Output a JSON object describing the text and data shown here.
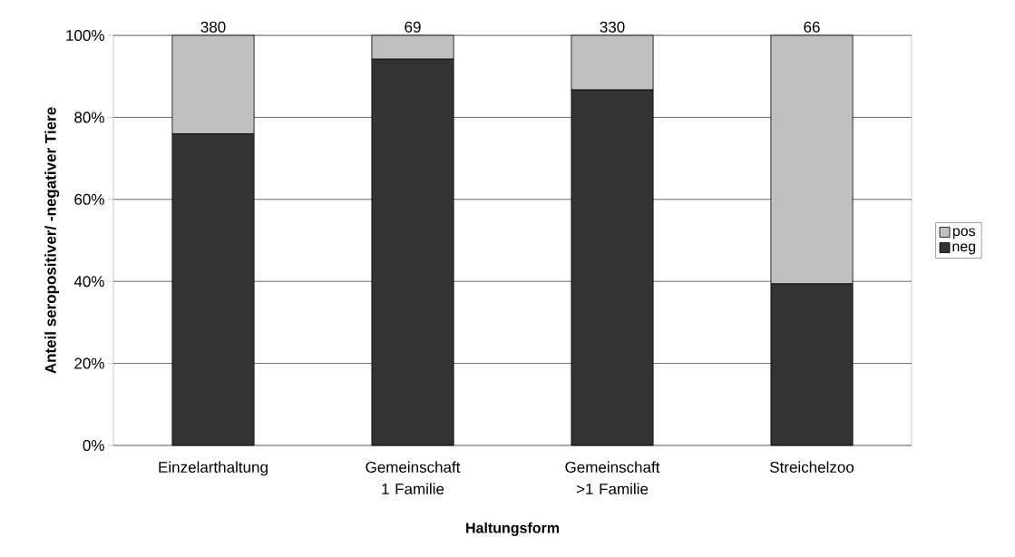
{
  "chart_data": {
    "type": "bar",
    "stacked": true,
    "xlabel": "Haltungsform",
    "ylabel": "Anteil seropositiver/ -negativer Tiere",
    "categories": [
      "Einzelarthaltung",
      "Gemeinschaft 1 Familie",
      "Gemeinschaft >1 Familie",
      "Streichelzoo"
    ],
    "series": [
      {
        "name": "neg",
        "color": "#333333",
        "values": [
          76,
          94.2,
          86.7,
          39.4
        ]
      },
      {
        "name": "pos",
        "color": "#c0c0c0",
        "values": [
          24,
          5.8,
          13.3,
          60.6
        ]
      }
    ],
    "annotations": [
      {
        "text": "380",
        "x": "Einzelarthaltung",
        "y": 100
      },
      {
        "text": "69",
        "x": "Gemeinschaft 1 Familie",
        "y": 100
      },
      {
        "text": "330",
        "x": "Gemeinschaft >1 Familie",
        "y": 100
      },
      {
        "text": "66",
        "x": "Streichelzoo",
        "y": 100
      }
    ],
    "ylim": [
      0,
      100
    ],
    "yticks": [
      {
        "value": 0,
        "label": "0%"
      },
      {
        "value": 20,
        "label": "20%"
      },
      {
        "value": 40,
        "label": "40%"
      },
      {
        "value": 60,
        "label": "60%"
      },
      {
        "value": 80,
        "label": "80%"
      },
      {
        "value": 100,
        "label": "100%"
      }
    ],
    "grid": "y",
    "legend": "right"
  }
}
